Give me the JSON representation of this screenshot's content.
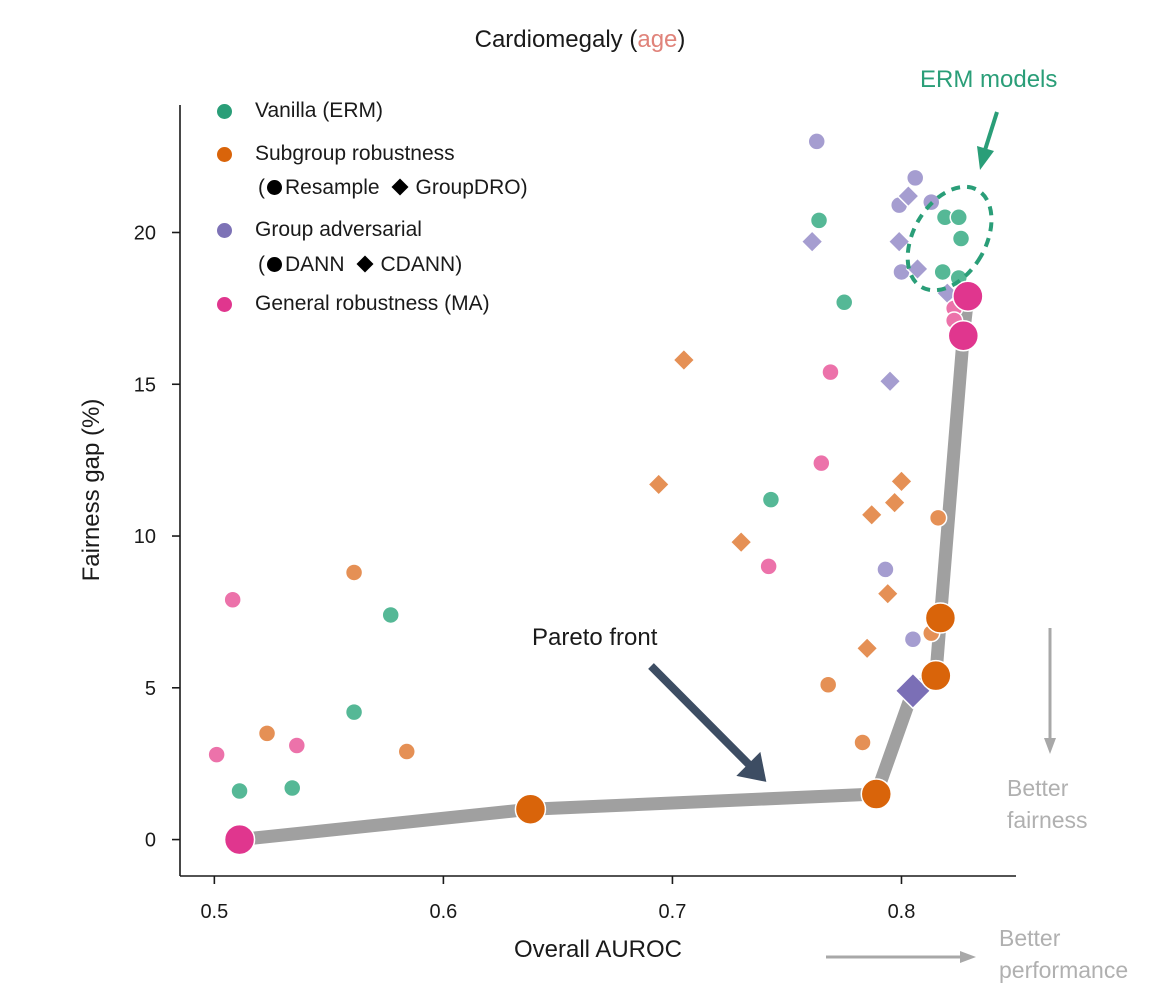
{
  "chart_data": {
    "type": "scatter",
    "title": "Cardiomegaly (",
    "title_highlight": "age",
    "title_suffix": ")",
    "xlabel": "Overall AUROC",
    "ylabel": "Fairness gap (%)",
    "xlim": [
      0.485,
      0.85
    ],
    "ylim": [
      -1.2,
      24.2
    ],
    "xticks": [
      0.5,
      0.6,
      0.7,
      0.8
    ],
    "xtick_labels": [
      "0.5",
      "0.6",
      "0.7",
      "0.8"
    ],
    "yticks": [
      0,
      5,
      10,
      15,
      20
    ],
    "ytick_labels": [
      "0",
      "5",
      "10",
      "15",
      "20"
    ],
    "legend": {
      "position": "top-left",
      "entries": [
        {
          "label": "Vanilla (ERM)",
          "color": "#2a9e78"
        },
        {
          "label": "Subgroup robustness",
          "color": "#d9640a",
          "marker_note_circle": "Resample",
          "marker_note_diamond": "GroupDRO",
          "open": "(",
          "close": ")"
        },
        {
          "label": "Group adversarial",
          "color": "#7d72b6",
          "marker_note_circle": "DANN",
          "marker_note_diamond": "CDANN",
          "open": "(",
          "close": ")"
        },
        {
          "label": "General robustness (MA)",
          "color": "#e0368e"
        }
      ]
    },
    "series": [
      {
        "name": "Vanilla (ERM)",
        "color": "#55b896",
        "marker": "circle",
        "points": [
          [
            0.511,
            1.6
          ],
          [
            0.534,
            1.7
          ],
          [
            0.561,
            4.2
          ],
          [
            0.577,
            7.4
          ],
          [
            0.743,
            11.2
          ],
          [
            0.764,
            20.4
          ],
          [
            0.775,
            17.7
          ],
          [
            0.819,
            20.5
          ],
          [
            0.818,
            18.7
          ],
          [
            0.825,
            20.5
          ],
          [
            0.826,
            19.8
          ],
          [
            0.825,
            18.5
          ]
        ]
      },
      {
        "name": "Resample",
        "color": "#e59055",
        "marker": "circle",
        "points": [
          [
            0.523,
            3.5
          ],
          [
            0.561,
            8.8
          ],
          [
            0.584,
            2.9
          ],
          [
            0.768,
            5.1
          ],
          [
            0.783,
            3.2
          ],
          [
            0.816,
            10.6
          ],
          [
            0.813,
            6.8
          ]
        ]
      },
      {
        "name": "GroupDRO",
        "color": "#e59055",
        "marker": "diamond",
        "points": [
          [
            0.705,
            15.8
          ],
          [
            0.694,
            11.7
          ],
          [
            0.73,
            9.8
          ],
          [
            0.787,
            10.7
          ],
          [
            0.797,
            11.1
          ],
          [
            0.8,
            11.8
          ],
          [
            0.794,
            8.1
          ],
          [
            0.785,
            6.3
          ]
        ]
      },
      {
        "name": "DANN",
        "color": "#a59dd0",
        "marker": "circle",
        "points": [
          [
            0.763,
            23.0
          ],
          [
            0.806,
            21.8
          ],
          [
            0.799,
            20.9
          ],
          [
            0.813,
            21.0
          ],
          [
            0.8,
            18.7
          ],
          [
            0.793,
            8.9
          ],
          [
            0.805,
            6.6
          ]
        ]
      },
      {
        "name": "CDANN",
        "color": "#a59dd0",
        "marker": "diamond",
        "points": [
          [
            0.761,
            19.7
          ],
          [
            0.799,
            19.7
          ],
          [
            0.803,
            21.2
          ],
          [
            0.807,
            18.8
          ],
          [
            0.82,
            18.0
          ],
          [
            0.795,
            15.1
          ]
        ]
      },
      {
        "name": "General robustness (MA)",
        "color": "#ec72aa",
        "marker": "circle",
        "points": [
          [
            0.508,
            7.9
          ],
          [
            0.501,
            2.8
          ],
          [
            0.536,
            3.1
          ],
          [
            0.769,
            15.4
          ],
          [
            0.765,
            12.4
          ],
          [
            0.742,
            9.0
          ],
          [
            0.823,
            17.5
          ],
          [
            0.823,
            17.1
          ]
        ]
      }
    ],
    "pareto_front": {
      "name": "Pareto front",
      "color": "#a0a0a0",
      "points": [
        {
          "x": 0.511,
          "y": 0.0,
          "group": "General robustness (MA)",
          "marker": "circle",
          "color": "#e0368e"
        },
        {
          "x": 0.638,
          "y": 1.0,
          "group": "Resample",
          "marker": "circle",
          "color": "#d9640a"
        },
        {
          "x": 0.789,
          "y": 1.5,
          "group": "Resample",
          "marker": "circle",
          "color": "#d9640a"
        },
        {
          "x": 0.805,
          "y": 4.9,
          "group": "CDANN",
          "marker": "diamond",
          "color": "#7b6fb6"
        },
        {
          "x": 0.815,
          "y": 5.4,
          "group": "Resample",
          "marker": "circle",
          "color": "#d9640a"
        },
        {
          "x": 0.817,
          "y": 7.3,
          "group": "Resample",
          "marker": "circle",
          "color": "#d9640a"
        },
        {
          "x": 0.827,
          "y": 16.6,
          "group": "General robustness (MA)",
          "marker": "circle",
          "color": "#e0368e"
        },
        {
          "x": 0.829,
          "y": 17.9,
          "group": "General robustness (MA)",
          "marker": "circle",
          "color": "#e0368e"
        }
      ]
    },
    "annotations": {
      "erm_models": {
        "text": "ERM models",
        "color": "#2a9e78",
        "ellipse_center": [
          0.821,
          19.8
        ]
      },
      "pareto_label": {
        "text": "Pareto front",
        "arrow_tip": [
          0.741,
          1.9
        ]
      },
      "better_fairness": {
        "line1": "Better",
        "line2": "fairness",
        "color": "#b0b0b0"
      },
      "better_performance": {
        "line1": "Better",
        "line2": "performance",
        "color": "#b0b0b0"
      }
    }
  }
}
